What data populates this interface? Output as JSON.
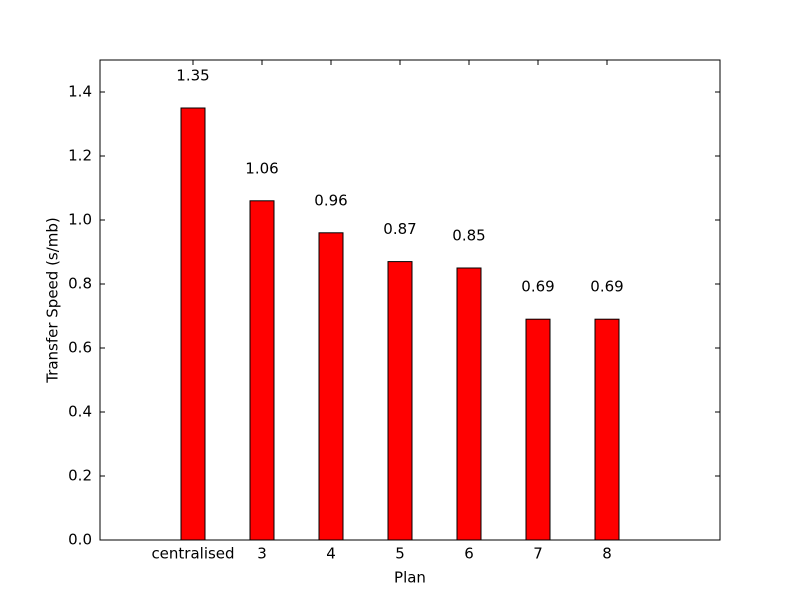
{
  "chart_data": {
    "type": "bar",
    "xlabel": "Plan",
    "ylabel": "Transfer Speed (s/mb)",
    "categories": [
      "centralised",
      "3",
      "4",
      "5",
      "6",
      "7",
      "8"
    ],
    "values": [
      1.35,
      1.06,
      0.96,
      0.87,
      0.85,
      0.69,
      0.69
    ],
    "color": "#ff0000",
    "ylim": [
      0,
      1.5
    ],
    "yticks": [
      {
        "value": 0,
        "label": "0.0"
      },
      0.2,
      0.4,
      0.6,
      0.8,
      {
        "value": 1,
        "label": "1.0"
      },
      1.2,
      1.4
    ],
    "grid": false
  }
}
